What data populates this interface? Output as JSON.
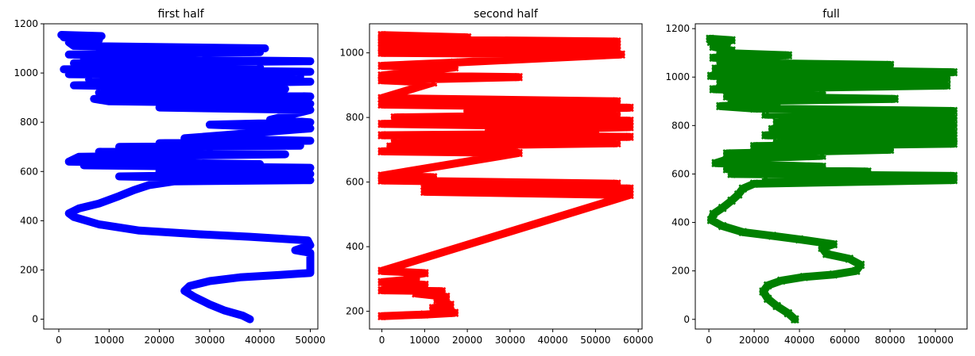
{
  "chart_data": [
    {
      "type": "line",
      "title": "first half",
      "color": "#0000ff",
      "marker": "circle",
      "xlim": [
        -3000,
        51500
      ],
      "ylim": [
        -40,
        1200
      ],
      "xticks": [
        0,
        10000,
        20000,
        30000,
        40000,
        50000
      ],
      "yticks": [
        0,
        200,
        400,
        600,
        800,
        1000,
        1200
      ],
      "points": [
        [
          38000,
          0
        ],
        [
          36500,
          15
        ],
        [
          33000,
          35
        ],
        [
          30000,
          60
        ],
        [
          27000,
          90
        ],
        [
          25000,
          115
        ],
        [
          26000,
          135
        ],
        [
          30000,
          155
        ],
        [
          36000,
          170
        ],
        [
          44000,
          180
        ],
        [
          50000,
          188
        ],
        [
          50000,
          270
        ],
        [
          47000,
          280
        ],
        [
          50000,
          300
        ],
        [
          49500,
          320
        ],
        [
          38000,
          335
        ],
        [
          28000,
          345
        ],
        [
          16000,
          360
        ],
        [
          8000,
          385
        ],
        [
          3000,
          415
        ],
        [
          2000,
          430
        ],
        [
          4000,
          450
        ],
        [
          8000,
          470
        ],
        [
          12000,
          500
        ],
        [
          15000,
          525
        ],
        [
          18000,
          545
        ],
        [
          23000,
          560
        ],
        [
          50000,
          565
        ],
        [
          12000,
          580
        ],
        [
          50000,
          590
        ],
        [
          20000,
          600
        ],
        [
          50000,
          615
        ],
        [
          5000,
          625
        ],
        [
          40000,
          630
        ],
        [
          2000,
          640
        ],
        [
          4000,
          660
        ],
        [
          45000,
          670
        ],
        [
          8000,
          680
        ],
        [
          30000,
          690
        ],
        [
          12000,
          700
        ],
        [
          48000,
          705
        ],
        [
          20000,
          715
        ],
        [
          50000,
          725
        ],
        [
          25000,
          735
        ],
        [
          50000,
          775
        ],
        [
          30000,
          790
        ],
        [
          50000,
          800
        ],
        [
          42000,
          810
        ],
        [
          50000,
          850
        ],
        [
          20000,
          860
        ],
        [
          50000,
          875
        ],
        [
          10000,
          885
        ],
        [
          7000,
          895
        ],
        [
          50000,
          905
        ],
        [
          8000,
          920
        ],
        [
          45000,
          935
        ],
        [
          3000,
          950
        ],
        [
          50000,
          965
        ],
        [
          6000,
          975
        ],
        [
          48000,
          985
        ],
        [
          2000,
          995
        ],
        [
          50000,
          1005
        ],
        [
          1000,
          1015
        ],
        [
          40000,
          1025
        ],
        [
          3000,
          1040
        ],
        [
          50000,
          1048
        ],
        [
          5000,
          1058
        ],
        [
          16000,
          1068
        ],
        [
          2000,
          1075
        ],
        [
          40000,
          1085
        ],
        [
          8000,
          1095
        ],
        [
          41000,
          1100
        ],
        [
          3000,
          1110
        ],
        [
          2000,
          1125
        ],
        [
          8000,
          1135
        ],
        [
          1000,
          1145
        ],
        [
          8500,
          1150
        ],
        [
          500,
          1155
        ]
      ]
    },
    {
      "type": "line",
      "title": "second half",
      "color": "#ff0000",
      "marker": "x",
      "xlim": [
        -2900,
        60900
      ],
      "ylim": [
        145,
        1090
      ],
      "xticks": [
        0,
        10000,
        20000,
        30000,
        40000,
        50000,
        60000
      ],
      "yticks": [
        200,
        400,
        600,
        800,
        1000
      ],
      "points": [
        [
          0,
          185
        ],
        [
          10000,
          190
        ],
        [
          17000,
          195
        ],
        [
          16000,
          200
        ],
        [
          12000,
          210
        ],
        [
          16000,
          220
        ],
        [
          13000,
          235
        ],
        [
          15000,
          245
        ],
        [
          8000,
          255
        ],
        [
          14000,
          262
        ],
        [
          0,
          265
        ],
        [
          7000,
          275
        ],
        [
          10000,
          282
        ],
        [
          0,
          290
        ],
        [
          8000,
          300
        ],
        [
          6000,
          310
        ],
        [
          10000,
          318
        ],
        [
          0,
          325
        ],
        [
          58000,
          560
        ],
        [
          10000,
          570
        ],
        [
          58000,
          580
        ],
        [
          10000,
          590
        ],
        [
          55000,
          595
        ],
        [
          0,
          605
        ],
        [
          12000,
          615
        ],
        [
          0,
          620
        ],
        [
          32000,
          690
        ],
        [
          0,
          695
        ],
        [
          31000,
          700
        ],
        [
          2000,
          710
        ],
        [
          55000,
          720
        ],
        [
          3000,
          730
        ],
        [
          58000,
          740
        ],
        [
          0,
          745
        ],
        [
          50000,
          750
        ],
        [
          25000,
          760
        ],
        [
          58000,
          770
        ],
        [
          0,
          780
        ],
        [
          58000,
          790
        ],
        [
          3000,
          800
        ],
        [
          55000,
          810
        ],
        [
          20000,
          820
        ],
        [
          58000,
          830
        ],
        [
          0,
          840
        ],
        [
          55000,
          850
        ],
        [
          0,
          860
        ],
        [
          12000,
          908
        ],
        [
          0,
          915
        ],
        [
          32000,
          925
        ],
        [
          0,
          930
        ],
        [
          17000,
          955
        ],
        [
          0,
          960
        ],
        [
          17000,
          970
        ],
        [
          56000,
          995
        ],
        [
          0,
          1000
        ],
        [
          55000,
          1005
        ],
        [
          0,
          1015
        ],
        [
          55000,
          1025
        ],
        [
          0,
          1030
        ],
        [
          55000,
          1035
        ],
        [
          0,
          1042
        ],
        [
          20000,
          1048
        ],
        [
          0,
          1055
        ]
      ]
    },
    {
      "type": "line",
      "title": "full",
      "color": "#008000",
      "marker": "x",
      "xlim": [
        -6000,
        114000
      ],
      "ylim": [
        -40,
        1220
      ],
      "xticks": [
        0,
        20000,
        40000,
        60000,
        80000,
        100000
      ],
      "yticks": [
        0,
        200,
        400,
        600,
        800,
        1000,
        1200
      ],
      "points": [
        [
          38000,
          0
        ],
        [
          35000,
          25
        ],
        [
          30000,
          55
        ],
        [
          26000,
          85
        ],
        [
          24000,
          115
        ],
        [
          26000,
          140
        ],
        [
          32000,
          160
        ],
        [
          42000,
          175
        ],
        [
          55000,
          185
        ],
        [
          65000,
          200
        ],
        [
          67000,
          225
        ],
        [
          62000,
          250
        ],
        [
          52000,
          270
        ],
        [
          50000,
          295
        ],
        [
          55000,
          310
        ],
        [
          40000,
          330
        ],
        [
          28000,
          345
        ],
        [
          15000,
          360
        ],
        [
          6000,
          385
        ],
        [
          1000,
          410
        ],
        [
          2000,
          435
        ],
        [
          6000,
          460
        ],
        [
          10000,
          490
        ],
        [
          13000,
          515
        ],
        [
          15000,
          540
        ],
        [
          20000,
          560
        ],
        [
          108000,
          575
        ],
        [
          25000,
          585
        ],
        [
          108000,
          592
        ],
        [
          10000,
          600
        ],
        [
          70000,
          610
        ],
        [
          8000,
          620
        ],
        [
          50000,
          630
        ],
        [
          3000,
          645
        ],
        [
          8000,
          660
        ],
        [
          50000,
          675
        ],
        [
          8000,
          685
        ],
        [
          80000,
          700
        ],
        [
          20000,
          715
        ],
        [
          108000,
          725
        ],
        [
          30000,
          735
        ],
        [
          108000,
          745
        ],
        [
          25000,
          760
        ],
        [
          108000,
          770
        ],
        [
          28000,
          785
        ],
        [
          108000,
          800
        ],
        [
          30000,
          815
        ],
        [
          108000,
          830
        ],
        [
          25000,
          845
        ],
        [
          108000,
          860
        ],
        [
          20000,
          870
        ],
        [
          5000,
          880
        ],
        [
          30000,
          890
        ],
        [
          10000,
          900
        ],
        [
          82000,
          910
        ],
        [
          8000,
          920
        ],
        [
          50000,
          935
        ],
        [
          2000,
          950
        ],
        [
          105000,
          965
        ],
        [
          5000,
          980
        ],
        [
          105000,
          995
        ],
        [
          1000,
          1005
        ],
        [
          108000,
          1020
        ],
        [
          3000,
          1035
        ],
        [
          80000,
          1050
        ],
        [
          5000,
          1060
        ],
        [
          30000,
          1070
        ],
        [
          2000,
          1080
        ],
        [
          35000,
          1090
        ],
        [
          5000,
          1100
        ],
        [
          10000,
          1110
        ],
        [
          2000,
          1125
        ],
        [
          8000,
          1135
        ],
        [
          1000,
          1145
        ],
        [
          10000,
          1152
        ],
        [
          500,
          1158
        ]
      ]
    }
  ]
}
